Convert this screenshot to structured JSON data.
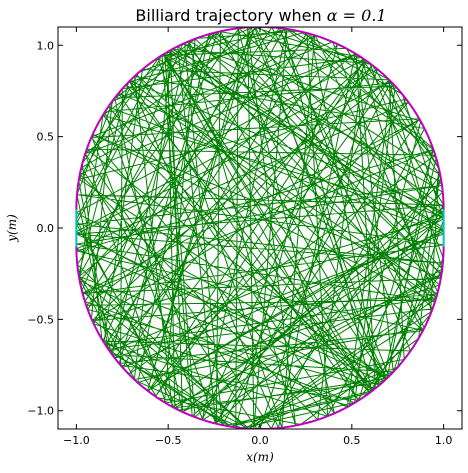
{
  "chart_data": {
    "type": "line",
    "title_prefix": "Billiard trajectory when ",
    "title_math": "α = 0.1",
    "xlabel": "x(m)",
    "ylabel": "y(m)",
    "xlim": [
      -1.1,
      1.1
    ],
    "ylim": [
      -1.1,
      1.1
    ],
    "x_ticks": [
      -1.0,
      -0.5,
      0.0,
      0.5,
      1.0
    ],
    "x_tick_labels": [
      "−1.0",
      "−0.5",
      "0.0",
      "0.5",
      "1.0"
    ],
    "y_ticks": [
      -1.0,
      -0.5,
      0.0,
      0.5,
      1.0
    ],
    "y_tick_labels": [
      "−1.0",
      "−0.5",
      "0.0",
      "0.5",
      "1.0"
    ],
    "grid": false,
    "boundary": {
      "shape": "stadium",
      "alpha": 0.1,
      "arc_color": "#bf00bf",
      "straight_color": "#00bfbf"
    },
    "trajectory": {
      "color": "#008000",
      "bounces": 260,
      "start": {
        "x": 0.0,
        "y": -1.1,
        "direction_deg": 72
      }
    }
  }
}
